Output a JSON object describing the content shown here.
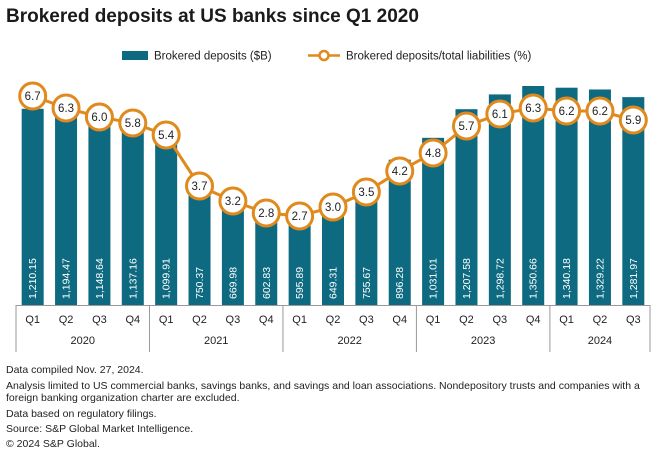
{
  "chart_data": {
    "type": "bar+line",
    "title": "Brokered deposits at US banks since Q1 2020",
    "legend": {
      "bar_label": "Brokered deposits ($B)",
      "line_label": "Brokered deposits/total liabilities (%)",
      "placement": "top-right"
    },
    "categories": [
      "Q1",
      "Q2",
      "Q3",
      "Q4",
      "Q1",
      "Q2",
      "Q3",
      "Q4",
      "Q1",
      "Q2",
      "Q3",
      "Q4",
      "Q1",
      "Q2",
      "Q3",
      "Q4",
      "Q1",
      "Q2",
      "Q3"
    ],
    "year_groups": [
      {
        "year": "2020",
        "count": 4
      },
      {
        "year": "2021",
        "count": 4
      },
      {
        "year": "2022",
        "count": 4
      },
      {
        "year": "2023",
        "count": 4
      },
      {
        "year": "2024",
        "count": 3
      }
    ],
    "series": [
      {
        "name": "Brokered deposits ($B)",
        "kind": "bar",
        "values": [
          1210.15,
          1194.47,
          1148.64,
          1137.16,
          1099.91,
          750.37,
          669.98,
          602.83,
          595.89,
          649.31,
          755.67,
          896.28,
          1031.01,
          1207.58,
          1298.72,
          1350.66,
          1340.18,
          1329.22,
          1281.97
        ],
        "labels": [
          "1,210.15",
          "1,194.47",
          "1,148.64",
          "1,137.16",
          "1,099.91",
          "750.37",
          "669.98",
          "602.83",
          "595.89",
          "649.31",
          "755.67",
          "896.28",
          "1,031.01",
          "1,207.58",
          "1,298.72",
          "1,350.66",
          "1,340.18",
          "1,329.22",
          "1,281.97"
        ],
        "ylim": [
          0,
          1400
        ]
      },
      {
        "name": "Brokered deposits/total liabilities (%)",
        "kind": "line",
        "values": [
          6.7,
          6.3,
          6.0,
          5.8,
          5.4,
          3.7,
          3.2,
          2.8,
          2.7,
          3.0,
          3.5,
          4.2,
          4.8,
          5.7,
          6.1,
          6.3,
          6.2,
          6.2,
          5.9
        ],
        "labels": [
          "6.7",
          "6.3",
          "6.0",
          "5.8",
          "5.4",
          "3.7",
          "3.2",
          "2.8",
          "2.7",
          "3.0",
          "3.5",
          "4.2",
          "4.8",
          "5.7",
          "6.1",
          "6.3",
          "6.2",
          "6.2",
          "5.9"
        ],
        "ylim": [
          1.5,
          7.0
        ]
      }
    ],
    "colors": {
      "bar": "#0e6a80",
      "line": "#e08a1e",
      "axis": "#999999"
    }
  },
  "notes": {
    "compiled": "Data compiled Nov. 27, 2024.",
    "scope": "Analysis limited to US commercial banks, savings banks, and savings and loan associations. Nondepository trusts and companies with a foreign banking organization charter are excluded.",
    "basis": "Data based on regulatory filings.",
    "source": "Source: S&P Global Market Intelligence.",
    "copyright": "© 2024 S&P Global."
  }
}
